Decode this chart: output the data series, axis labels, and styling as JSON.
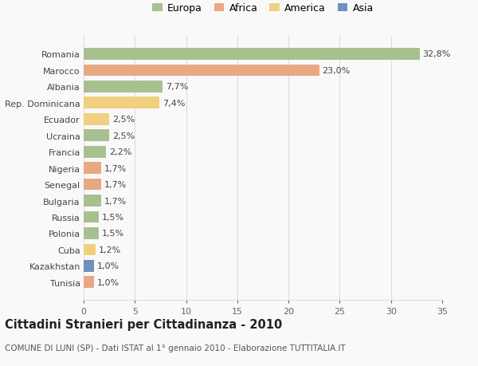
{
  "categories": [
    "Romania",
    "Marocco",
    "Albania",
    "Rep. Dominicana",
    "Ecuador",
    "Ucraina",
    "Francia",
    "Nigeria",
    "Senegal",
    "Bulgaria",
    "Russia",
    "Polonia",
    "Cuba",
    "Kazakhstan",
    "Tunisia"
  ],
  "values": [
    32.8,
    23.0,
    7.7,
    7.4,
    2.5,
    2.5,
    2.2,
    1.7,
    1.7,
    1.7,
    1.5,
    1.5,
    1.2,
    1.0,
    1.0
  ],
  "labels": [
    "32,8%",
    "23,0%",
    "7,7%",
    "7,4%",
    "2,5%",
    "2,5%",
    "2,2%",
    "1,7%",
    "1,7%",
    "1,7%",
    "1,5%",
    "1,5%",
    "1,2%",
    "1,0%",
    "1,0%"
  ],
  "bar_colors": [
    "#a8c090",
    "#e8a882",
    "#a8c090",
    "#f0d080",
    "#f0d080",
    "#a8c090",
    "#a8c090",
    "#e8a882",
    "#e8a882",
    "#a8c090",
    "#a8c090",
    "#a8c090",
    "#f0d080",
    "#7090c0",
    "#e8a882"
  ],
  "legend_labels": [
    "Europa",
    "Africa",
    "America",
    "Asia"
  ],
  "legend_colors": [
    "#a8c090",
    "#e8a882",
    "#f0d080",
    "#7090c0"
  ],
  "title": "Cittadini Stranieri per Cittadinanza - 2010",
  "subtitle": "COMUNE DI LUNI (SP) - Dati ISTAT al 1° gennaio 2010 - Elaborazione TUTTITALIA.IT",
  "xlim": [
    0,
    35
  ],
  "xticks": [
    0,
    5,
    10,
    15,
    20,
    25,
    30,
    35
  ],
  "background_color": "#f9f9f9",
  "grid_color": "#dddddd",
  "bar_height": 0.72,
  "label_fontsize": 8,
  "tick_fontsize": 8,
  "title_fontsize": 10.5,
  "subtitle_fontsize": 7.5,
  "legend_fontsize": 9
}
